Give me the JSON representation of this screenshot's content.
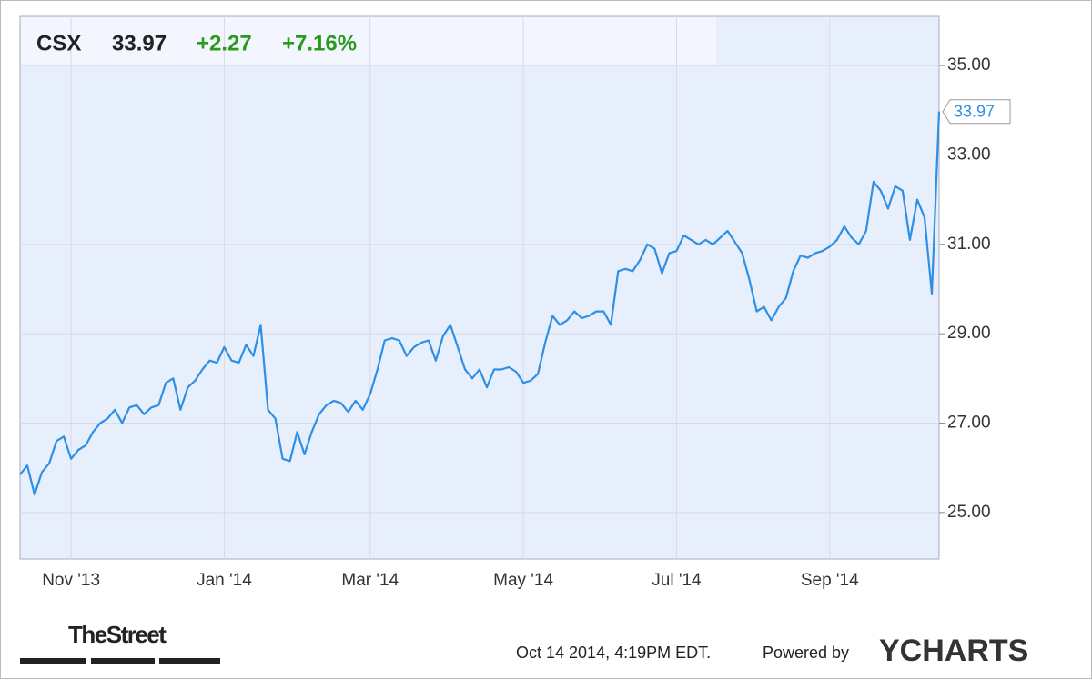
{
  "chart_data": {
    "type": "line",
    "header": {
      "symbol": "CSX",
      "price": "33.97",
      "change": "+2.27",
      "change_pct": "+7.16%"
    },
    "categories": [
      null,
      null,
      null,
      null,
      null,
      null,
      null,
      "Nov '13",
      null,
      null,
      null,
      null,
      null,
      null,
      null,
      null,
      null,
      null,
      null,
      null,
      null,
      null,
      null,
      null,
      null,
      null,
      null,
      null,
      "Jan '14",
      null,
      null,
      null,
      null,
      null,
      null,
      null,
      null,
      null,
      null,
      null,
      null,
      null,
      null,
      null,
      null,
      null,
      null,
      null,
      "Mar '14",
      null,
      null,
      null,
      null,
      null,
      null,
      null,
      null,
      null,
      null,
      null,
      null,
      null,
      null,
      null,
      null,
      null,
      null,
      null,
      null,
      "May '14",
      null,
      null,
      null,
      null,
      null,
      null,
      null,
      null,
      null,
      null,
      null,
      null,
      null,
      null,
      null,
      null,
      null,
      null,
      null,
      null,
      "Jul '14",
      null,
      null,
      null,
      null,
      null,
      null,
      null,
      null,
      null,
      null,
      null,
      null,
      null,
      null,
      null,
      null,
      null,
      null,
      null,
      null,
      "Sep '14",
      null,
      null,
      null,
      null,
      null,
      null,
      null,
      null,
      null,
      null,
      null,
      null,
      null,
      null,
      null
    ],
    "values": [
      25.85,
      26.05,
      25.4,
      25.9,
      26.1,
      26.6,
      26.7,
      26.2,
      26.4,
      26.5,
      26.8,
      27.0,
      27.1,
      27.3,
      27.0,
      27.35,
      27.4,
      27.2,
      27.35,
      27.4,
      27.9,
      28.0,
      27.3,
      27.8,
      27.95,
      28.2,
      28.4,
      28.35,
      28.7,
      28.4,
      28.35,
      28.75,
      28.5,
      29.2,
      27.3,
      27.1,
      26.2,
      26.15,
      26.8,
      26.3,
      26.8,
      27.2,
      27.4,
      27.5,
      27.45,
      27.25,
      27.5,
      27.3,
      27.65,
      28.2,
      28.85,
      28.9,
      28.85,
      28.5,
      28.7,
      28.8,
      28.85,
      28.4,
      28.95,
      29.2,
      28.7,
      28.2,
      28.0,
      28.2,
      27.8,
      28.2,
      28.2,
      28.25,
      28.15,
      27.9,
      27.95,
      28.1,
      28.8,
      29.4,
      29.2,
      29.3,
      29.5,
      29.35,
      29.4,
      29.5,
      29.5,
      29.2,
      30.4,
      30.45,
      30.4,
      30.65,
      31.0,
      30.9,
      30.35,
      30.8,
      30.85,
      31.2,
      31.1,
      31.0,
      31.1,
      31.0,
      31.15,
      31.3,
      31.05,
      30.8,
      30.2,
      29.5,
      29.6,
      29.3,
      29.6,
      29.8,
      30.4,
      30.75,
      30.7,
      30.8,
      30.85,
      30.95,
      31.1,
      31.4,
      31.15,
      31.0,
      31.3,
      32.4,
      32.2,
      31.8,
      32.3,
      32.2,
      31.1,
      32.0,
      31.6,
      29.9,
      33.97
    ],
    "color": "#2e8fe6",
    "ylim": [
      23.96,
      36.1
    ],
    "yticks": [
      {
        "value": 25,
        "label": "25.00"
      },
      {
        "value": 27,
        "label": "27.00"
      },
      {
        "value": 29,
        "label": "29.00"
      },
      {
        "value": 31,
        "label": "31.00"
      },
      {
        "value": 33,
        "label": "33.00"
      },
      {
        "value": 35,
        "label": "35.00"
      }
    ],
    "grid": true,
    "footer": {
      "brand": "TheStreet",
      "timestamp": "Oct 14 2014, 4:19PM EDT.",
      "powered": "Powered by",
      "provider": "YCHARTS"
    }
  }
}
